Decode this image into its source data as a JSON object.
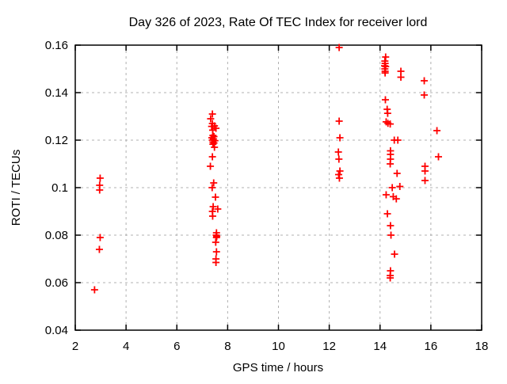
{
  "colors": {
    "marker": "#ff0000",
    "grid": "#b0b0b0",
    "axis": "#000000",
    "background": "#ffffff",
    "text": "#000000"
  },
  "chart_data": {
    "type": "scatter",
    "title": "Day 326 of 2023, Rate Of TEC Index for receiver lord",
    "xlabel": "GPS time / hours",
    "ylabel": "ROTI / TECUs",
    "xlim": [
      2,
      18
    ],
    "ylim": [
      0.04,
      0.16
    ],
    "xticks": [
      2,
      4,
      6,
      8,
      10,
      12,
      14,
      16,
      18
    ],
    "xtick_labels": [
      "2",
      "4",
      "6",
      "8",
      "10",
      "12",
      "14",
      "16",
      "18"
    ],
    "yticks": [
      0.04,
      0.06,
      0.08,
      0.1,
      0.12,
      0.14,
      0.16
    ],
    "ytick_labels": [
      "0.04",
      "0.06",
      "0.08",
      "0.1",
      "0.12",
      "0.14",
      "0.16"
    ],
    "grid": true,
    "grid_style": "dashed",
    "legend": "none",
    "marker": "plus",
    "marker_color": "#ff0000",
    "series": [
      {
        "name": "ROTI",
        "points": [
          [
            2.98,
            0.104
          ],
          [
            2.96,
            0.101
          ],
          [
            2.96,
            0.099
          ],
          [
            2.98,
            0.079
          ],
          [
            2.95,
            0.074
          ],
          [
            2.76,
            0.057
          ],
          [
            7.4,
            0.131
          ],
          [
            7.33,
            0.129
          ],
          [
            7.4,
            0.127
          ],
          [
            7.48,
            0.126
          ],
          [
            7.37,
            0.1258
          ],
          [
            7.54,
            0.125
          ],
          [
            7.41,
            0.1242
          ],
          [
            7.42,
            0.122
          ],
          [
            7.46,
            0.1215
          ],
          [
            7.38,
            0.121
          ],
          [
            7.44,
            0.1205
          ],
          [
            7.4,
            0.12
          ],
          [
            7.5,
            0.1198
          ],
          [
            7.42,
            0.1192
          ],
          [
            7.46,
            0.1188
          ],
          [
            7.42,
            0.1183
          ],
          [
            7.48,
            0.117
          ],
          [
            7.4,
            0.113
          ],
          [
            7.32,
            0.109
          ],
          [
            7.45,
            0.102
          ],
          [
            7.39,
            0.1
          ],
          [
            7.52,
            0.096
          ],
          [
            7.43,
            0.092
          ],
          [
            7.61,
            0.091
          ],
          [
            7.4,
            0.09
          ],
          [
            7.41,
            0.088
          ],
          [
            7.56,
            0.081
          ],
          [
            7.55,
            0.08
          ],
          [
            7.57,
            0.0795
          ],
          [
            7.56,
            0.079
          ],
          [
            7.53,
            0.077
          ],
          [
            7.56,
            0.073
          ],
          [
            7.54,
            0.07
          ],
          [
            7.54,
            0.0685
          ],
          [
            12.39,
            0.159
          ],
          [
            12.39,
            0.128
          ],
          [
            12.42,
            0.121
          ],
          [
            12.36,
            0.115
          ],
          [
            12.38,
            0.112
          ],
          [
            12.42,
            0.107
          ],
          [
            12.37,
            0.1055
          ],
          [
            12.4,
            0.104
          ],
          [
            14.22,
            0.155
          ],
          [
            14.19,
            0.1533
          ],
          [
            14.2,
            0.1523
          ],
          [
            14.18,
            0.1513
          ],
          [
            14.22,
            0.151
          ],
          [
            14.19,
            0.15
          ],
          [
            14.2,
            0.149
          ],
          [
            14.2,
            0.1483
          ],
          [
            14.82,
            0.149
          ],
          [
            14.82,
            0.1465
          ],
          [
            14.21,
            0.137
          ],
          [
            14.28,
            0.133
          ],
          [
            14.3,
            0.1313
          ],
          [
            14.24,
            0.1277
          ],
          [
            14.31,
            0.1271
          ],
          [
            14.4,
            0.1268
          ],
          [
            14.56,
            0.12
          ],
          [
            14.7,
            0.12
          ],
          [
            14.41,
            0.1155
          ],
          [
            14.41,
            0.114
          ],
          [
            14.41,
            0.112
          ],
          [
            14.4,
            0.11
          ],
          [
            14.67,
            0.106
          ],
          [
            14.48,
            0.1
          ],
          [
            14.78,
            0.1005
          ],
          [
            14.24,
            0.097
          ],
          [
            14.52,
            0.0962
          ],
          [
            14.64,
            0.0953
          ],
          [
            14.29,
            0.089
          ],
          [
            14.41,
            0.084
          ],
          [
            14.43,
            0.08
          ],
          [
            14.57,
            0.072
          ],
          [
            14.41,
            0.065
          ],
          [
            14.4,
            0.063
          ],
          [
            14.4,
            0.062
          ],
          [
            15.74,
            0.145
          ],
          [
            15.74,
            0.139
          ],
          [
            16.24,
            0.124
          ],
          [
            16.3,
            0.113
          ],
          [
            15.77,
            0.109
          ],
          [
            15.77,
            0.107
          ],
          [
            15.77,
            0.103
          ]
        ]
      }
    ]
  }
}
